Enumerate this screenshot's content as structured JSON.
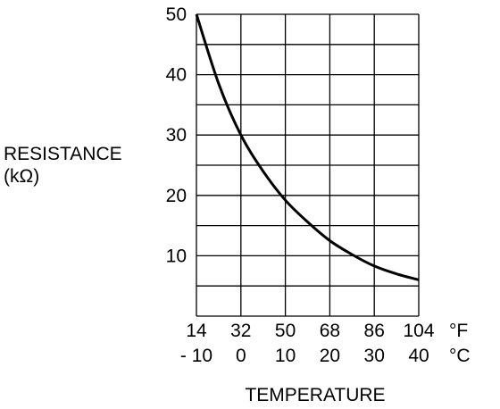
{
  "chart_data": {
    "type": "line",
    "ylabel_line1": "RESISTANCE",
    "ylabel_line2": "(kΩ)",
    "xlabel": "TEMPERATURE",
    "x_unit_f": "°F",
    "x_unit_c": "°C",
    "x_ticks_f": [
      "14",
      "32",
      "50",
      "68",
      "86",
      "104"
    ],
    "x_ticks_c": [
      "- 10",
      "0",
      "10",
      "20",
      "30",
      "40"
    ],
    "y_ticks": [
      "50",
      "40",
      "30",
      "20",
      "10"
    ],
    "xlim_c": [
      -10,
      40
    ],
    "ylim": [
      0,
      50
    ],
    "grid": true,
    "series": [
      {
        "x": [
          -10,
          -5,
          0,
          5,
          10,
          15,
          20,
          25,
          30,
          35,
          40
        ],
        "y": [
          50,
          38.5,
          30,
          24,
          19.2,
          15.6,
          12.5,
          10.2,
          8.3,
          7,
          6
        ]
      }
    ]
  }
}
